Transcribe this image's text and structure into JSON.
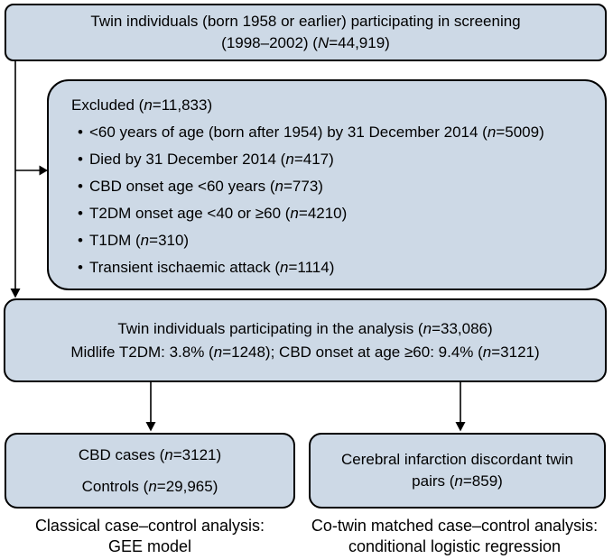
{
  "colors": {
    "box_fill": "#cdd9e6",
    "box_border": "#000000",
    "text": "#000000",
    "background": "#ffffff",
    "arrow": "#000000"
  },
  "flowchart": {
    "screening_box": {
      "line1": "Twin individuals (born 1958 or earlier) participating in screening",
      "line2": "(1998–2002) (N=44,919)"
    },
    "excluded_box": {
      "title": "Excluded (n=11,833)",
      "items": [
        "<60 years of age (born after 1954) by 31 December 2014 (n=5009)",
        "Died by 31 December 2014 (n=417)",
        "CBD onset age <60 years (n=773)",
        "T2DM onset age <40 or ≥60 (n=4210)",
        "T1DM (n=310)",
        "Transient ischaemic attack (n=1114)"
      ]
    },
    "analysis_box": {
      "line1": "Twin individuals participating in the analysis (n=33,086)",
      "line2": "Midlife T2DM: 3.8% (n=1248); CBD onset at age ≥60: 9.4% (n=3121)"
    },
    "case_control_box": {
      "line1": "CBD cases (n=3121)",
      "line2": "Controls (n=29,965)"
    },
    "cotwin_box": {
      "line1": "Cerebral infarction discordant twin",
      "line2": "pairs (n=859)"
    },
    "caption_left": {
      "line1": "Classical case–control analysis:",
      "line2": "GEE model"
    },
    "caption_right": {
      "line1": "Co-twin matched case–control analysis:",
      "line2": "conditional logistic regression"
    }
  }
}
